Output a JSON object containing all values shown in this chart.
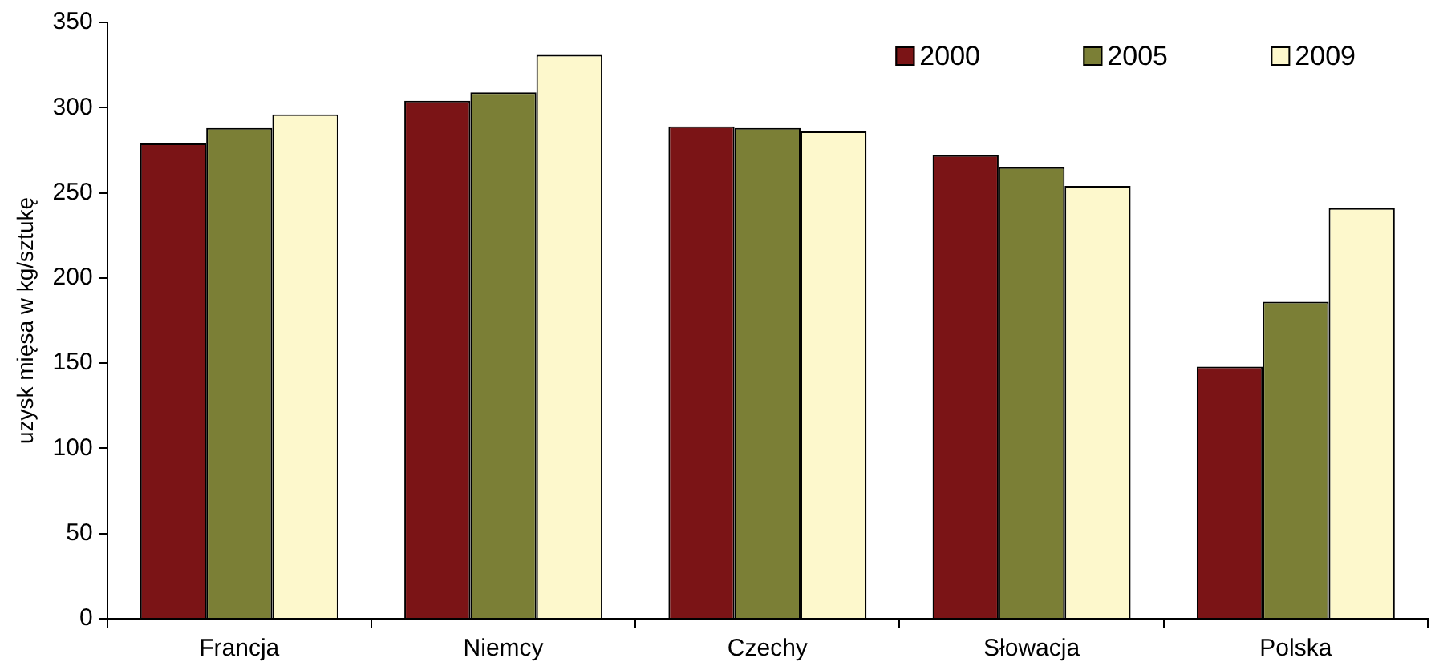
{
  "chart_data": {
    "type": "bar",
    "ylabel": "uzysk mięsa w kg/sztukę",
    "categories": [
      "Francja",
      "Niemcy",
      "Czechy",
      "Słowacja",
      "Polska"
    ],
    "series": [
      {
        "name": "2000",
        "color": "#7b1416",
        "values": [
          279,
          304,
          289,
          272,
          148
        ]
      },
      {
        "name": "2005",
        "color": "#7b7f36",
        "values": [
          288,
          309,
          288,
          265,
          186
        ]
      },
      {
        "name": "2009",
        "color": "#fdf8cc",
        "values": [
          296,
          331,
          286,
          254,
          241
        ]
      }
    ],
    "ylim": [
      0,
      350
    ],
    "yticks": [
      0,
      50,
      100,
      150,
      200,
      250,
      300,
      350
    ],
    "grid": false,
    "legend": "top right"
  }
}
